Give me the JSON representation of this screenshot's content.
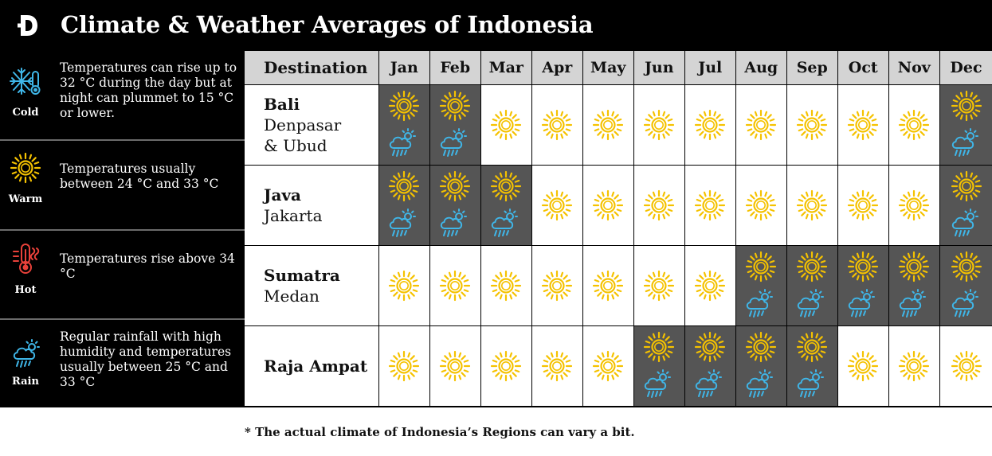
{
  "header": {
    "logo_letter": "D",
    "title": "Climate & Weather Averages of Indonesia"
  },
  "legend": [
    {
      "name": "Cold",
      "icon": "snowflake-thermometer-icon",
      "description": "Temperatures can rise up to 32 °C during the day but at night can plummet to 15 °C or lower."
    },
    {
      "name": "Warm",
      "icon": "sun-icon",
      "description": "Temperatures usually between 24 °C and 33 °C"
    },
    {
      "name": "Hot",
      "icon": "hot-thermometer-icon",
      "description": "Temperatures rise above 34 °C"
    },
    {
      "name": "Rain",
      "icon": "rain-cloud-icon",
      "description": "Regular rainfall with high humidity and temperatures usually between 25 °C and 33 °C"
    }
  ],
  "table": {
    "destination_header": "Destination",
    "months": [
      "Jan",
      "Feb",
      "Mar",
      "Apr",
      "May",
      "Jun",
      "Jul",
      "Aug",
      "Sep",
      "Oct",
      "Nov",
      "Dec"
    ],
    "rows": [
      {
        "region": "Bali",
        "city_lines": [
          "Denpasar",
          "& Ubud"
        ],
        "rain_months": [
          1,
          1,
          0,
          0,
          0,
          0,
          0,
          0,
          0,
          0,
          0,
          1
        ]
      },
      {
        "region": "Java",
        "city_lines": [
          "Jakarta"
        ],
        "rain_months": [
          1,
          1,
          1,
          0,
          0,
          0,
          0,
          0,
          0,
          0,
          0,
          1
        ]
      },
      {
        "region": "Sumatra",
        "city_lines": [
          "Medan"
        ],
        "rain_months": [
          0,
          0,
          0,
          0,
          0,
          0,
          0,
          1,
          1,
          1,
          1,
          1
        ]
      },
      {
        "region": "Raja Ampat",
        "city_lines": [],
        "rain_months": [
          0,
          0,
          0,
          0,
          0,
          1,
          1,
          1,
          1,
          0,
          0,
          0
        ]
      }
    ]
  },
  "colors": {
    "header_bg": "#000000",
    "column_header_bg": "#d4d4d4",
    "rain_cell_bg": "#555555",
    "sun": "#f5c200",
    "rain": "#3fb6e8",
    "cold": "#3fb6e8",
    "hot": "#e8413a"
  },
  "footnote": "* The actual climate of Indonesia’s Regions can vary a bit."
}
